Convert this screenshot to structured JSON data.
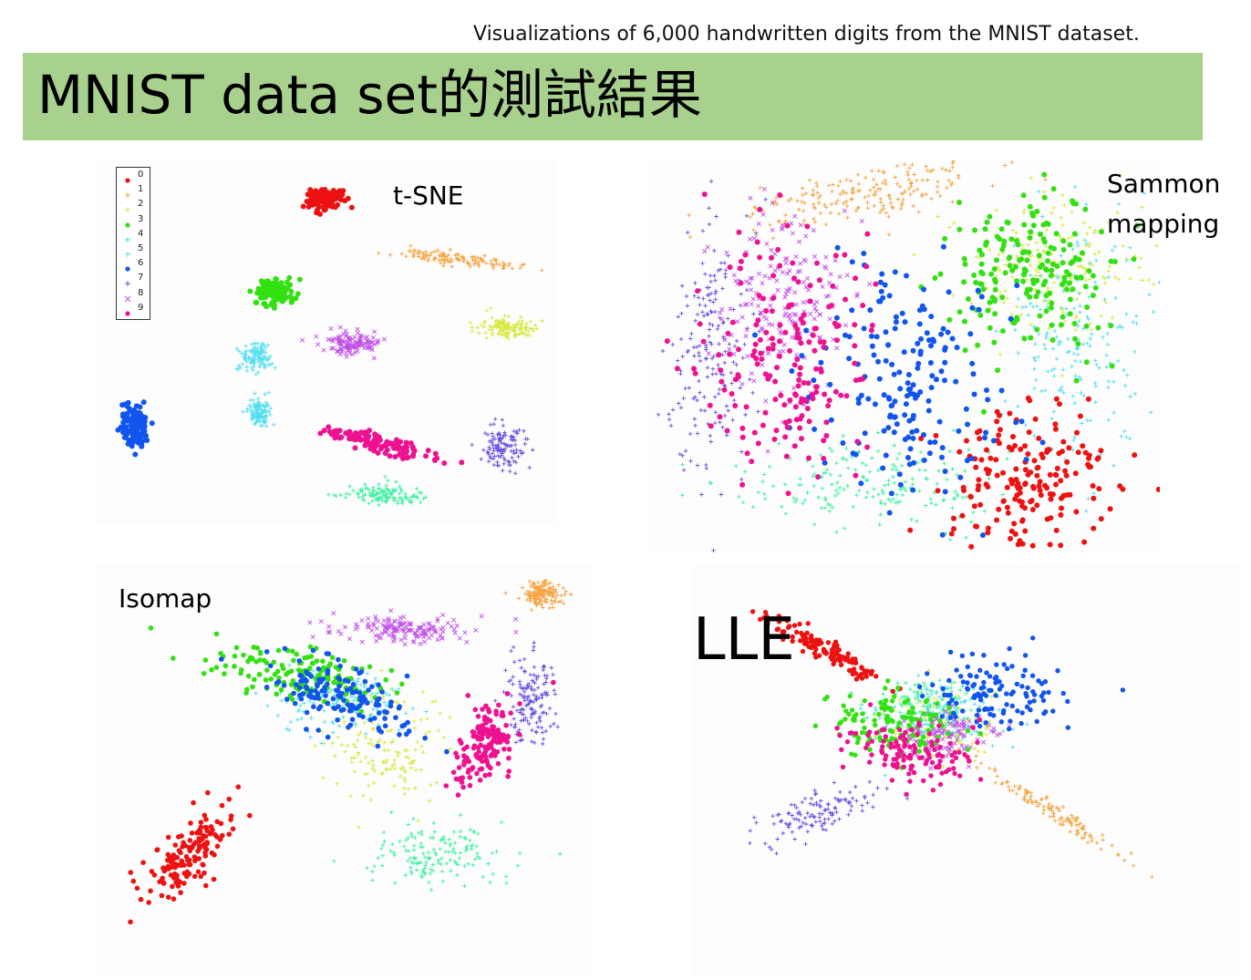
{
  "page": {
    "subtitle": "Visualizations of 6,000 handwritten digits from the MNIST dataset.",
    "title": "MNIST data set的測試結果"
  },
  "colors": {
    "banner": "#a9d18e",
    "digits": {
      "0": "#ee1111",
      "1": "#f4a442",
      "2": "#d7e83a",
      "3": "#33e011",
      "4": "#3ef0a0",
      "5": "#55dff0",
      "6": "#1155ee",
      "7": "#6a4fe0",
      "8": "#c04fe8",
      "9": "#ee1190"
    }
  },
  "legend": {
    "labels": [
      "0",
      "1",
      "2",
      "3",
      "4",
      "5",
      "6",
      "7",
      "8",
      "9"
    ]
  },
  "chart_data": [
    {
      "type": "scatter",
      "title": "t-SNE",
      "series": [
        {
          "name": "0",
          "marker": "dot",
          "clusters": [
            {
              "cx": 0.45,
              "cy": 9.5,
              "sx": 0.22,
              "sy": 0.16
            }
          ]
        },
        {
          "name": "1",
          "marker": "plus",
          "clusters": [
            {
              "cx": 3.8,
              "cy": 7.7,
              "sx": 0.8,
              "sy": 0.1,
              "angle": -8
            }
          ]
        },
        {
          "name": "2",
          "marker": "plus",
          "clusters": [
            {
              "cx": 5.1,
              "cy": 5.6,
              "sx": 0.38,
              "sy": 0.18
            }
          ]
        },
        {
          "name": "3",
          "marker": "dot",
          "clusters": [
            {
              "cx": -0.85,
              "cy": 6.7,
              "sx": 0.24,
              "sy": 0.22
            }
          ]
        },
        {
          "name": "4",
          "marker": "plus",
          "clusters": [
            {
              "cx": 1.9,
              "cy": 0.5,
              "sx": 0.55,
              "sy": 0.15
            }
          ]
        },
        {
          "name": "5",
          "marker": "plus",
          "clusters": [
            {
              "cx": -1.3,
              "cy": 4.7,
              "sx": 0.22,
              "sy": 0.22
            },
            {
              "cx": -1.2,
              "cy": 3.0,
              "sx": 0.14,
              "sy": 0.2
            }
          ]
        },
        {
          "name": "6",
          "marker": "dot",
          "clusters": [
            {
              "cx": -4.4,
              "cy": 2.6,
              "sx": 0.18,
              "sy": 0.3
            }
          ]
        },
        {
          "name": "7",
          "marker": "plus",
          "clusters": [
            {
              "cx": 5.0,
              "cy": 2.0,
              "sx": 0.25,
              "sy": 0.35
            }
          ]
        },
        {
          "name": "8",
          "marker": "x",
          "clusters": [
            {
              "cx": 1.2,
              "cy": 5.1,
              "sx": 0.4,
              "sy": 0.18
            }
          ]
        },
        {
          "name": "9",
          "marker": "dot",
          "clusters": [
            {
              "cx": 1.8,
              "cy": 2.1,
              "sx": 0.7,
              "sy": 0.14,
              "angle": -18
            }
          ]
        }
      ]
    },
    {
      "type": "scatter",
      "title": "Sammon\nmapping",
      "series": [
        {
          "name": "0",
          "marker": "dot",
          "clusters": [
            {
              "cx": 0.6,
              "cy": -0.55,
              "sx": 0.18,
              "sy": 0.18
            }
          ]
        },
        {
          "name": "1",
          "marker": "plus",
          "clusters": [
            {
              "cx": -0.1,
              "cy": 0.82,
              "sx": 0.3,
              "sy": 0.06,
              "angle": 12
            }
          ]
        },
        {
          "name": "2",
          "marker": "plus",
          "clusters": [
            {
              "cx": 0.7,
              "cy": 0.5,
              "sx": 0.2,
              "sy": 0.15
            }
          ]
        },
        {
          "name": "3",
          "marker": "dot",
          "clusters": [
            {
              "cx": 0.6,
              "cy": 0.45,
              "sx": 0.2,
              "sy": 0.2
            }
          ]
        },
        {
          "name": "4",
          "marker": "plus",
          "clusters": [
            {
              "cx": -0.1,
              "cy": -0.55,
              "sx": 0.3,
              "sy": 0.1
            }
          ]
        },
        {
          "name": "5",
          "marker": "plus",
          "clusters": [
            {
              "cx": 0.8,
              "cy": 0.1,
              "sx": 0.15,
              "sy": 0.3
            }
          ]
        },
        {
          "name": "6",
          "marker": "dot",
          "clusters": [
            {
              "cx": 0.1,
              "cy": -0.05,
              "sx": 0.2,
              "sy": 0.3
            }
          ]
        },
        {
          "name": "7",
          "marker": "plus",
          "clusters": [
            {
              "cx": -0.8,
              "cy": 0.1,
              "sx": 0.09,
              "sy": 0.3
            }
          ]
        },
        {
          "name": "8",
          "marker": "x",
          "clusters": [
            {
              "cx": -0.5,
              "cy": 0.3,
              "sx": 0.15,
              "sy": 0.2
            }
          ]
        },
        {
          "name": "9",
          "marker": "dot",
          "clusters": [
            {
              "cx": -0.45,
              "cy": 0.05,
              "sx": 0.2,
              "sy": 0.32
            }
          ]
        }
      ]
    },
    {
      "type": "scatter",
      "title": "Isomap",
      "series": [
        {
          "name": "0",
          "marker": "dot",
          "clusters": [
            {
              "cx": -3.2,
              "cy": -1.5,
              "sx": 0.55,
              "sy": 0.22,
              "angle": 52
            }
          ]
        },
        {
          "name": "1",
          "marker": "plus",
          "clusters": [
            {
              "cx": 3.1,
              "cy": 3.4,
              "sx": 0.2,
              "sy": 0.12
            }
          ]
        },
        {
          "name": "2",
          "marker": "plus",
          "clusters": [
            {
              "cx": 0.2,
              "cy": 0.5,
              "sx": 0.6,
              "sy": 0.5
            }
          ]
        },
        {
          "name": "3",
          "marker": "dot",
          "clusters": [
            {
              "cx": -1.3,
              "cy": 1.9,
              "sx": 0.8,
              "sy": 0.25,
              "angle": -12
            }
          ]
        },
        {
          "name": "4",
          "marker": "plus",
          "clusters": [
            {
              "cx": 1.3,
              "cy": -1.5,
              "sx": 0.6,
              "sy": 0.3
            }
          ]
        },
        {
          "name": "5",
          "marker": "plus",
          "clusters": [
            {
              "cx": -0.6,
              "cy": 1.4,
              "sx": 0.6,
              "sy": 0.3
            }
          ]
        },
        {
          "name": "6",
          "marker": "dot",
          "clusters": [
            {
              "cx": -0.5,
              "cy": 1.5,
              "sx": 0.7,
              "sy": 0.3,
              "angle": -25
            }
          ]
        },
        {
          "name": "7",
          "marker": "plus",
          "clusters": [
            {
              "cx": 2.9,
              "cy": 1.4,
              "sx": 0.2,
              "sy": 0.45
            }
          ]
        },
        {
          "name": "8",
          "marker": "x",
          "clusters": [
            {
              "cx": 0.6,
              "cy": 2.7,
              "sx": 0.6,
              "sy": 0.15
            }
          ]
        },
        {
          "name": "9",
          "marker": "dot",
          "clusters": [
            {
              "cx": 2.1,
              "cy": 0.5,
              "sx": 0.45,
              "sy": 0.22,
              "angle": 62
            }
          ]
        }
      ]
    },
    {
      "type": "scatter",
      "title": "LLE",
      "series": [
        {
          "name": "0",
          "marker": "dot",
          "clusters": [
            {
              "cx": -1.4,
              "cy": 1.5,
              "sx": 0.5,
              "sy": 0.08,
              "angle": -35
            }
          ]
        },
        {
          "name": "1",
          "marker": "plus",
          "clusters": [
            {
              "cx": 1.8,
              "cy": -1.2,
              "sx": 0.6,
              "sy": 0.06,
              "angle": -38
            }
          ]
        },
        {
          "name": "2",
          "marker": "plus",
          "clusters": [
            {
              "cx": 0.2,
              "cy": 0.2,
              "sx": 0.4,
              "sy": 0.3
            }
          ]
        },
        {
          "name": "3",
          "marker": "dot",
          "clusters": [
            {
              "cx": -0.4,
              "cy": 0.3,
              "sx": 0.4,
              "sy": 0.3
            }
          ]
        },
        {
          "name": "4",
          "marker": "plus",
          "clusters": [
            {
              "cx": 0.0,
              "cy": 0.6,
              "sx": 0.4,
              "sy": 0.2
            }
          ]
        },
        {
          "name": "5",
          "marker": "plus",
          "clusters": [
            {
              "cx": 0.3,
              "cy": 0.4,
              "sx": 0.4,
              "sy": 0.3
            }
          ]
        },
        {
          "name": "6",
          "marker": "dot",
          "clusters": [
            {
              "cx": 1.0,
              "cy": 0.8,
              "sx": 0.5,
              "sy": 0.3
            }
          ]
        },
        {
          "name": "7",
          "marker": "plus",
          "clusters": [
            {
              "cx": -1.4,
              "cy": -1.2,
              "sx": 0.5,
              "sy": 0.15,
              "angle": 22
            }
          ]
        },
        {
          "name": "8",
          "marker": "x",
          "clusters": [
            {
              "cx": 0.3,
              "cy": 0.1,
              "sx": 0.3,
              "sy": 0.2
            }
          ]
        },
        {
          "name": "9",
          "marker": "dot",
          "clusters": [
            {
              "cx": -0.1,
              "cy": -0.2,
              "sx": 0.45,
              "sy": 0.25,
              "angle": -15
            }
          ]
        }
      ]
    }
  ]
}
